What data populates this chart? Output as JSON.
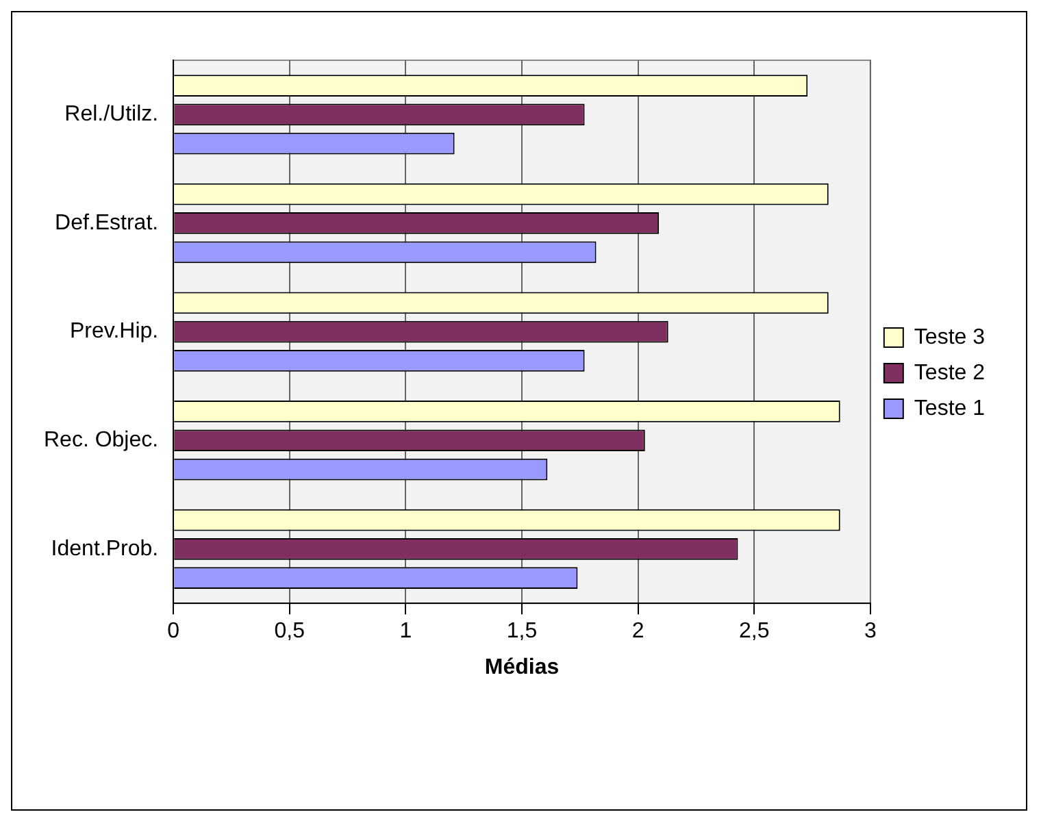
{
  "chart_data": {
    "type": "bar",
    "orientation": "horizontal",
    "xlabel": "Médias",
    "categories": [
      "Rel./Utilz.",
      "Def.Estrat.",
      "Prev.Hip.",
      "Rec. Objec.",
      "Ident.Prob."
    ],
    "series": [
      {
        "name": "Teste 3",
        "color": "#ffffcc",
        "values": [
          2.73,
          2.82,
          2.82,
          2.87,
          2.87
        ]
      },
      {
        "name": "Teste 2",
        "color": "#803060",
        "values": [
          1.77,
          2.09,
          2.13,
          2.03,
          2.43
        ]
      },
      {
        "name": "Teste 1",
        "color": "#9999ff",
        "values": [
          1.21,
          1.82,
          1.77,
          1.61,
          1.74
        ]
      }
    ],
    "xlim": [
      0,
      3
    ],
    "xticks": [
      0,
      {
        "value": 0.5,
        "label": "0,5"
      },
      1,
      {
        "value": 1.5,
        "label": "1,5"
      },
      2,
      {
        "value": 2.5,
        "label": "2,5"
      },
      3
    ],
    "grid": "x",
    "legend": "right"
  }
}
